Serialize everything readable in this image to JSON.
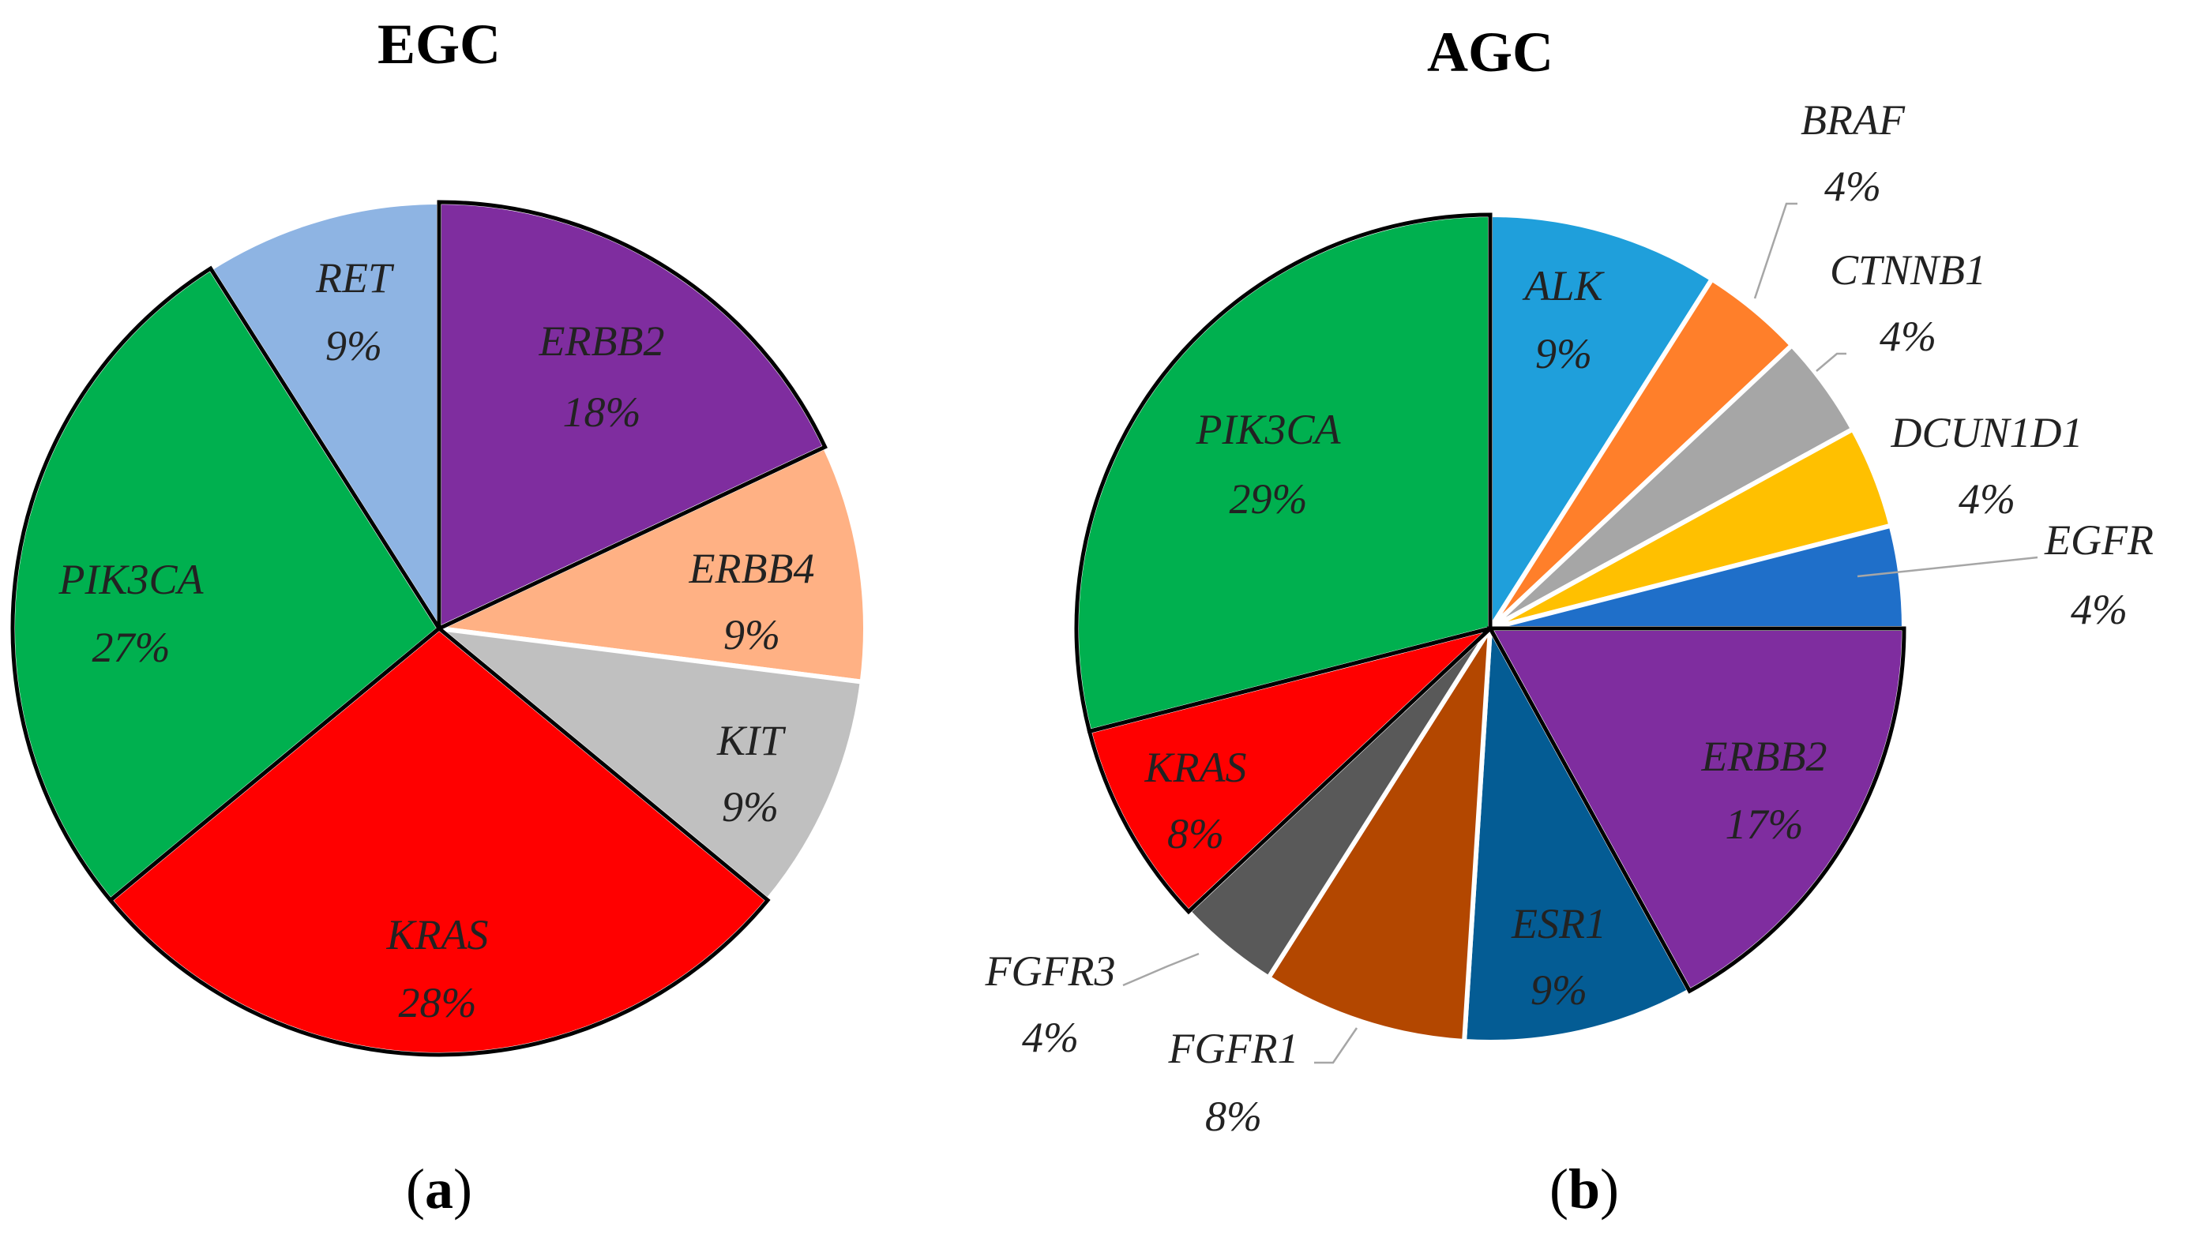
{
  "chart_data": [
    {
      "type": "pie",
      "title": "EGC",
      "panel_label": "a",
      "slices": [
        {
          "label": "ERBB2",
          "value": 18,
          "pct": "18%",
          "color": "#7f2d9f",
          "outlined": true
        },
        {
          "label": "ERBB4",
          "value": 9,
          "pct": "9%",
          "color": "#ffb184",
          "outlined": false
        },
        {
          "label": "KIT",
          "value": 9,
          "pct": "9%",
          "color": "#c0c0c0",
          "outlined": false
        },
        {
          "label": "KRAS",
          "value": 28,
          "pct": "28%",
          "color": "#ff0000",
          "outlined": true
        },
        {
          "label": "PIK3CA",
          "value": 27,
          "pct": "27%",
          "color": "#00b04f",
          "outlined": true
        },
        {
          "label": "RET",
          "value": 9,
          "pct": "9%",
          "color": "#8eb4e3",
          "outlined": false
        }
      ]
    },
    {
      "type": "pie",
      "title": "AGC",
      "panel_label": "b",
      "slices": [
        {
          "label": "ALK",
          "value": 9,
          "pct": "9%",
          "color": "#1f9fdb",
          "outlined": false
        },
        {
          "label": "BRAF",
          "value": 4,
          "pct": "4%",
          "color": "#ff7f2a",
          "outlined": false
        },
        {
          "label": "CTNNB1",
          "value": 4,
          "pct": "4%",
          "color": "#a6a6a6",
          "outlined": false
        },
        {
          "label": "DCUN1D1",
          "value": 4,
          "pct": "4%",
          "color": "#ffc000",
          "outlined": false
        },
        {
          "label": "EGFR",
          "value": 4,
          "pct": "4%",
          "color": "#1f6fc9",
          "outlined": false
        },
        {
          "label": "ERBB2",
          "value": 17,
          "pct": "17%",
          "color": "#7f2d9f",
          "outlined": true
        },
        {
          "label": "ESR1",
          "value": 9,
          "pct": "9%",
          "color": "#045c94",
          "outlined": false
        },
        {
          "label": "FGFR1",
          "value": 8,
          "pct": "8%",
          "color": "#b34700",
          "outlined": false
        },
        {
          "label": "FGFR3",
          "value": 4,
          "pct": "4%",
          "color": "#595959",
          "outlined": false
        },
        {
          "label": "KRAS",
          "value": 8,
          "pct": "8%",
          "color": "#ff0000",
          "outlined": true
        },
        {
          "label": "PIK3CA",
          "value": 29,
          "pct": "29%",
          "color": "#00b04f",
          "outlined": true
        }
      ]
    }
  ]
}
